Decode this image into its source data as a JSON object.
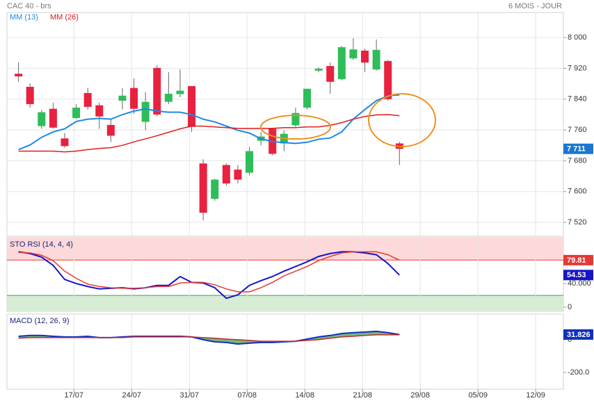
{
  "header": {
    "title": "CAC 40 - brs",
    "period": "6 MOIS - JOUR"
  },
  "chart_data": [
    {
      "type": "candlestick",
      "legend": "top-left",
      "open": [
        7906,
        7872,
        7770,
        7815,
        7738,
        7791,
        7856,
        7824,
        7773,
        7836,
        7869,
        7781,
        7921,
        7833,
        7853,
        7874,
        7673,
        7581,
        7669,
        7657,
        7649,
        7732,
        7763,
        7725,
        7772,
        7818,
        7914,
        7926,
        7892,
        7946,
        7966,
        7917,
        7939,
        7725
      ],
      "high": [
        7935,
        7881,
        7812,
        7831,
        7752,
        7827,
        7869,
        7831,
        7788,
        7869,
        7894,
        7858,
        7928,
        7910,
        7917,
        7874,
        7684,
        7633,
        7673,
        7669,
        7716,
        7755,
        7766,
        7759,
        7818,
        7867,
        7923,
        7935,
        7978,
        7998,
        7971,
        7995,
        7942,
        7729
      ],
      "low": [
        7885,
        7818,
        7763,
        7763,
        7714,
        7788,
        7813,
        7763,
        7729,
        7813,
        7802,
        7759,
        7795,
        7827,
        7845,
        7755,
        7525,
        7576,
        7615,
        7621,
        7642,
        7720,
        7694,
        7705,
        7768,
        7813,
        7910,
        7854,
        7889,
        7942,
        7910,
        7914,
        7836,
        7669
      ],
      "close": [
        7899,
        7827,
        7806,
        7766,
        7718,
        7818,
        7820,
        7795,
        7745,
        7849,
        7815,
        7833,
        7800,
        7854,
        7862,
        7768,
        7545,
        7631,
        7621,
        7631,
        7705,
        7743,
        7698,
        7750,
        7804,
        7867,
        7919,
        7885,
        7975,
        7969,
        7935,
        7968,
        7840,
        7711
      ],
      "up_color": "#2ebd59",
      "down_color": "#e8213f",
      "close_label": "7 711",
      "close_badge_color": "#1976d2",
      "series": [
        {
          "name": "MM (13)",
          "color": "#1e88e5",
          "values": [
            7709,
            7721,
            7741,
            7755,
            7763,
            7782,
            7788,
            7790,
            7788,
            7800,
            7809,
            7815,
            7809,
            7806,
            7806,
            7800,
            7788,
            7781,
            7770,
            7759,
            7752,
            7737,
            7730,
            7727,
            7725,
            7728,
            7736,
            7739,
            7755,
            7788,
            7813,
            7836,
            7849,
            7851
          ]
        },
        {
          "name": "MM (26)",
          "color": "#e01b1b",
          "values": [
            7705,
            7705,
            7705,
            7705,
            7703,
            7705,
            7709,
            7712,
            7714,
            7720,
            7729,
            7737,
            7745,
            7754,
            7763,
            7770,
            7770,
            7768,
            7766,
            7764,
            7764,
            7764,
            7764,
            7766,
            7766,
            7768,
            7768,
            7772,
            7779,
            7788,
            7795,
            7799,
            7800,
            7797
          ]
        }
      ],
      "xlim": [
        -1,
        47.2
      ],
      "ylim": [
        7484,
        8065
      ],
      "yticks": [
        {
          "value": 7520,
          "label": "7 520"
        },
        {
          "value": 7600,
          "label": "7 600"
        },
        {
          "value": 7680,
          "label": "7 680"
        },
        {
          "value": 7760,
          "label": "7 760"
        },
        {
          "value": 7840,
          "label": "7 840"
        },
        {
          "value": 7920,
          "label": "7 920"
        },
        {
          "value": 8000,
          "label": "8 000"
        }
      ],
      "grid": true
    },
    {
      "type": "line",
      "title": "STO RSI (14, 4, 4)",
      "zones": {
        "upper": 80,
        "lower": 20
      },
      "series": [
        {
          "color": "#1414c8",
          "badge": true,
          "values": [
            94,
            91,
            85,
            71,
            47,
            40,
            35,
            31,
            32,
            33,
            31,
            33,
            37,
            37,
            52,
            42,
            41,
            33,
            15,
            21,
            37,
            45,
            52,
            61,
            69,
            77,
            86,
            91,
            94,
            94,
            92,
            89,
            74,
            54.53
          ]
        },
        {
          "color": "#e53935",
          "badge": true,
          "values": [
            93,
            92,
            88,
            79,
            61,
            49,
            39,
            35,
            33,
            32,
            32,
            33,
            35,
            35,
            41,
            42,
            42,
            38,
            31,
            26,
            26,
            33,
            42,
            53,
            61,
            69,
            79,
            86,
            92,
            94,
            94,
            94,
            89,
            79.81
          ]
        }
      ],
      "xlim": [
        -1,
        47.2
      ],
      "ylim": [
        -7,
        118
      ],
      "yticks": [
        0,
        {
          "value": 40,
          "label": "40.000"
        }
      ],
      "grid": false
    },
    {
      "type": "line",
      "title": "MACD (12, 26, 9)",
      "fill_between": "#3a9a48",
      "series": [
        {
          "color": "#1030c0",
          "badge": true,
          "values": [
            21,
            26,
            26,
            21,
            17,
            17,
            21,
            13,
            13,
            17,
            21,
            21,
            21,
            21,
            21,
            17,
            0,
            -13,
            -17,
            -26,
            -21,
            -17,
            -17,
            -13,
            -9,
            4,
            17,
            26,
            38,
            43,
            47,
            51,
            43,
            31.826
          ]
        },
        {
          "color": "#c62828",
          "values": [
            9,
            13,
            13,
            13,
            13,
            13,
            13,
            13,
            13,
            13,
            17,
            17,
            17,
            17,
            17,
            17,
            13,
            9,
            4,
            0,
            -4,
            -9,
            -9,
            -9,
            -9,
            -4,
            0,
            9,
            17,
            21,
            26,
            30,
            30,
            30
          ]
        }
      ],
      "xlim": [
        -1,
        47.2
      ],
      "ylim": [
        -302,
        157
      ],
      "yticks": [
        {
          "value": -200,
          "label": "-200.0"
        },
        0
      ],
      "xticks": [
        {
          "value": 4.8,
          "label": "17/07"
        },
        {
          "value": 9.8,
          "label": "24/07"
        },
        {
          "value": 14.8,
          "label": "31/07"
        },
        {
          "value": 19.8,
          "label": "07/08"
        },
        {
          "value": 24.8,
          "label": "14/08"
        },
        {
          "value": 29.8,
          "label": "21/08"
        },
        {
          "value": 34.8,
          "label": "29/08"
        },
        {
          "value": 39.8,
          "label": "05/09"
        },
        {
          "value": 44.8,
          "label": "12/09"
        }
      ],
      "grid": false
    }
  ]
}
